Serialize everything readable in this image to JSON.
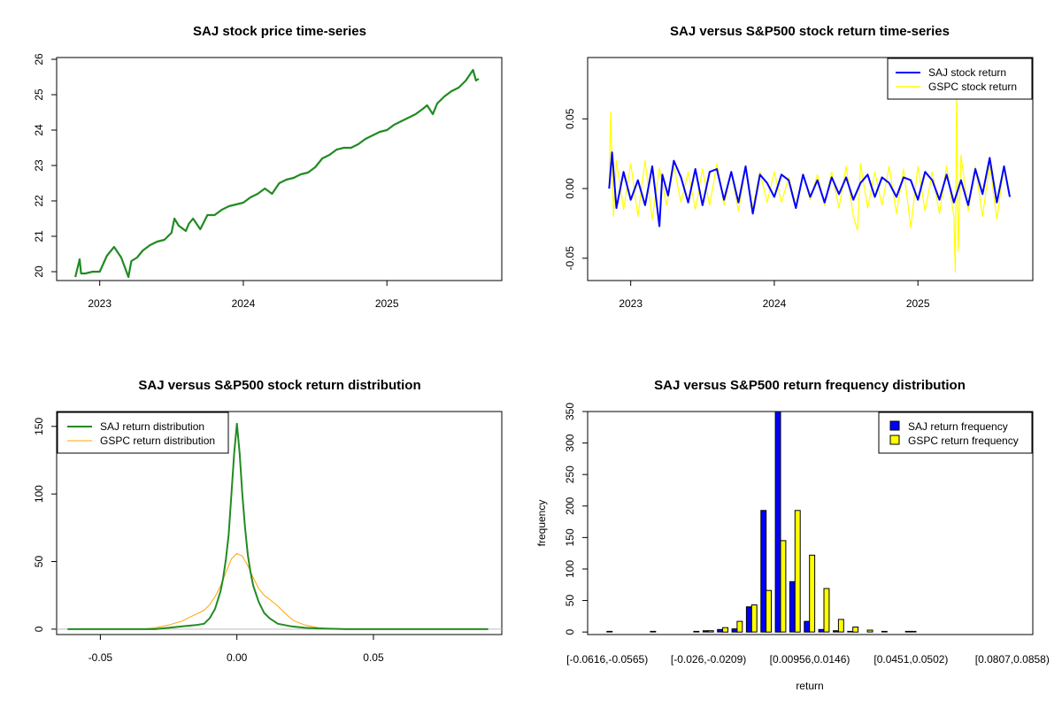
{
  "chart_data": [
    {
      "type": "line",
      "title": "SAJ stock price time-series",
      "xlabel": "",
      "ylabel": "",
      "x_ticks": [
        "2023",
        "2024",
        "2025"
      ],
      "x_tick_values": [
        2023.0,
        2024.0,
        2025.0
      ],
      "xlim": [
        2022.7,
        2025.8
      ],
      "y_ticks": [
        "20",
        "21",
        "22",
        "23",
        "24",
        "25",
        "26"
      ],
      "y_tick_values": [
        20,
        21,
        22,
        23,
        24,
        25,
        26
      ],
      "ylim": [
        19.75,
        26.05
      ],
      "grid": false,
      "legend": "none",
      "colors": {
        "line": "#228b22"
      },
      "series": [
        {
          "x": [
            2022.83,
            2022.86,
            2022.87,
            2022.9,
            2022.95,
            2023.0,
            2023.05,
            2023.1,
            2023.15,
            2023.2,
            2023.22,
            2023.26,
            2023.3,
            2023.35,
            2023.4,
            2023.45,
            2023.5,
            2023.52,
            2023.55,
            2023.6,
            2023.62,
            2023.65,
            2023.7,
            2023.75,
            2023.8,
            2023.85,
            2023.9,
            2023.95,
            2024.0,
            2024.05,
            2024.1,
            2024.15,
            2024.2,
            2024.25,
            2024.3,
            2024.35,
            2024.4,
            2024.45,
            2024.5,
            2024.55,
            2024.6,
            2024.65,
            2024.7,
            2024.75,
            2024.8,
            2024.85,
            2024.9,
            2024.95,
            2025.0,
            2025.05,
            2025.1,
            2025.15,
            2025.2,
            2025.25,
            2025.28,
            2025.32,
            2025.35,
            2025.4,
            2025.45,
            2025.5,
            2025.55,
            2025.6,
            2025.62,
            2025.64
          ],
          "y": [
            19.85,
            20.35,
            19.95,
            19.95,
            20.0,
            20.0,
            20.45,
            20.7,
            20.4,
            19.85,
            20.3,
            20.4,
            20.6,
            20.75,
            20.85,
            20.9,
            21.1,
            21.5,
            21.3,
            21.15,
            21.35,
            21.5,
            21.2,
            21.6,
            21.6,
            21.75,
            21.85,
            21.9,
            21.95,
            22.1,
            22.2,
            22.35,
            22.2,
            22.5,
            22.6,
            22.65,
            22.75,
            22.8,
            22.95,
            23.2,
            23.3,
            23.45,
            23.5,
            23.5,
            23.6,
            23.75,
            23.85,
            23.95,
            24.0,
            24.15,
            24.25,
            24.35,
            24.45,
            24.6,
            24.7,
            24.45,
            24.75,
            24.95,
            25.1,
            25.2,
            25.4,
            25.7,
            25.4,
            25.45
          ]
        }
      ]
    },
    {
      "type": "line",
      "title": "SAJ versus S&P500 stock return time-series",
      "xlabel": "",
      "ylabel": "",
      "x_ticks": [
        "2023",
        "2024",
        "2025"
      ],
      "x_tick_values": [
        2023.0,
        2024.0,
        2025.0
      ],
      "xlim": [
        2022.7,
        2025.8
      ],
      "y_ticks": [
        "-0.05",
        "0.00",
        "0.05"
      ],
      "y_tick_values": [
        -0.05,
        0.0,
        0.05
      ],
      "ylim": [
        -0.066,
        0.094
      ],
      "grid": false,
      "legend": "top-right",
      "colors": {
        "saj": "#0000ff",
        "gspc": "#ffff00"
      },
      "series": [
        {
          "name": "SAJ stock return",
          "x": [
            2022.85,
            2022.87,
            2022.9,
            2022.95,
            2023.0,
            2023.05,
            2023.1,
            2023.15,
            2023.2,
            2023.22,
            2023.26,
            2023.3,
            2023.35,
            2023.4,
            2023.45,
            2023.5,
            2023.55,
            2023.6,
            2023.65,
            2023.7,
            2023.75,
            2023.8,
            2023.85,
            2023.9,
            2023.95,
            2024.0,
            2024.05,
            2024.1,
            2024.15,
            2024.2,
            2024.25,
            2024.3,
            2024.35,
            2024.4,
            2024.45,
            2024.5,
            2024.55,
            2024.6,
            2024.65,
            2024.7,
            2024.75,
            2024.8,
            2024.85,
            2024.9,
            2024.95,
            2025.0,
            2025.05,
            2025.1,
            2025.15,
            2025.2,
            2025.25,
            2025.3,
            2025.35,
            2025.4,
            2025.45,
            2025.5,
            2025.55,
            2025.6,
            2025.64
          ],
          "y": [
            0.0,
            0.026,
            -0.014,
            0.012,
            -0.008,
            0.006,
            -0.012,
            0.016,
            -0.027,
            0.01,
            -0.005,
            0.02,
            0.008,
            -0.01,
            0.014,
            -0.012,
            0.012,
            0.014,
            -0.008,
            0.012,
            -0.01,
            0.016,
            -0.018,
            0.01,
            0.004,
            -0.006,
            0.01,
            0.006,
            -0.014,
            0.01,
            -0.006,
            0.006,
            -0.01,
            0.008,
            -0.004,
            0.008,
            -0.008,
            0.004,
            0.01,
            -0.006,
            0.008,
            0.004,
            -0.006,
            0.008,
            0.006,
            -0.008,
            0.012,
            0.006,
            -0.008,
            0.01,
            -0.01,
            0.006,
            -0.012,
            0.014,
            -0.004,
            0.022,
            -0.01,
            0.016,
            -0.006
          ]
        },
        {
          "name": "GSPC stock return",
          "x": [
            2022.85,
            2022.86,
            2022.88,
            2022.9,
            2022.95,
            2023.0,
            2023.05,
            2023.1,
            2023.15,
            2023.2,
            2023.25,
            2023.3,
            2023.35,
            2023.4,
            2023.45,
            2023.5,
            2023.55,
            2023.6,
            2023.65,
            2023.7,
            2023.75,
            2023.8,
            2023.85,
            2023.9,
            2023.95,
            2024.0,
            2024.05,
            2024.1,
            2024.15,
            2024.2,
            2024.25,
            2024.3,
            2024.35,
            2024.4,
            2024.45,
            2024.5,
            2024.55,
            2024.58,
            2024.6,
            2024.65,
            2024.7,
            2024.75,
            2024.8,
            2024.85,
            2024.9,
            2024.95,
            2025.0,
            2025.05,
            2025.1,
            2025.15,
            2025.2,
            2025.25,
            2025.26,
            2025.27,
            2025.28,
            2025.3,
            2025.35,
            2025.4,
            2025.45,
            2025.5,
            2025.55,
            2025.6,
            2025.64
          ],
          "y": [
            0.0,
            0.055,
            -0.02,
            0.02,
            -0.015,
            0.018,
            -0.02,
            0.02,
            -0.022,
            0.015,
            -0.012,
            0.016,
            -0.01,
            0.012,
            -0.015,
            0.014,
            -0.012,
            0.018,
            -0.012,
            0.012,
            -0.016,
            0.015,
            -0.014,
            0.012,
            -0.01,
            0.012,
            -0.01,
            0.008,
            -0.012,
            0.01,
            -0.008,
            0.01,
            -0.012,
            0.012,
            -0.014,
            0.016,
            -0.02,
            -0.03,
            0.018,
            -0.014,
            0.012,
            -0.012,
            0.016,
            -0.018,
            0.014,
            -0.028,
            0.016,
            -0.016,
            0.012,
            -0.018,
            0.016,
            -0.02,
            -0.06,
            0.07,
            -0.045,
            0.024,
            -0.016,
            0.016,
            -0.02,
            0.018,
            -0.022,
            0.016,
            -0.004
          ]
        }
      ]
    },
    {
      "type": "line",
      "title": "SAJ versus S&P500 stock return distribution",
      "xlabel": "",
      "ylabel": "",
      "x_ticks": [
        "-0.05",
        "0.00",
        "0.05"
      ],
      "x_tick_values": [
        -0.05,
        0.0,
        0.05
      ],
      "xlim": [
        -0.066,
        0.097
      ],
      "y_ticks": [
        "0",
        "50",
        "100",
        "150"
      ],
      "y_tick_values": [
        0,
        50,
        100,
        150
      ],
      "ylim": [
        -4,
        161
      ],
      "grid": false,
      "legend": "top-left",
      "colors": {
        "saj": "#228b22",
        "gspc": "#ffa500",
        "baseline": "#bebebe"
      },
      "series": [
        {
          "name": "SAJ return distribution",
          "x": [
            -0.062,
            -0.04,
            -0.03,
            -0.025,
            -0.02,
            -0.015,
            -0.012,
            -0.01,
            -0.008,
            -0.006,
            -0.005,
            -0.004,
            -0.003,
            -0.002,
            -0.001,
            0.0,
            0.001,
            0.002,
            0.003,
            0.004,
            0.005,
            0.006,
            0.008,
            0.01,
            0.012,
            0.015,
            0.02,
            0.025,
            0.03,
            0.04,
            0.055,
            0.092
          ],
          "y": [
            0,
            0,
            0,
            1,
            2,
            3,
            4,
            8,
            15,
            28,
            38,
            52,
            70,
            100,
            130,
            152,
            130,
            100,
            75,
            55,
            42,
            32,
            20,
            12,
            8,
            4,
            2,
            1,
            0.5,
            0,
            0,
            0
          ]
        },
        {
          "name": "GSPC return distribution",
          "x": [
            -0.062,
            -0.04,
            -0.035,
            -0.03,
            -0.025,
            -0.02,
            -0.017,
            -0.014,
            -0.012,
            -0.01,
            -0.008,
            -0.006,
            -0.004,
            -0.002,
            0.0,
            0.002,
            0.004,
            0.006,
            0.008,
            0.01,
            0.012,
            0.015,
            0.018,
            0.021,
            0.025,
            0.03,
            0.035,
            0.04,
            0.06,
            0.092
          ],
          "y": [
            0,
            0,
            0,
            1,
            3,
            6,
            9,
            12,
            14,
            18,
            24,
            32,
            42,
            52,
            56,
            54,
            47,
            38,
            30,
            25,
            22,
            17,
            11,
            6,
            3,
            1,
            0.3,
            0,
            0,
            0
          ]
        }
      ]
    },
    {
      "type": "bar",
      "title": "SAJ versus S&P500 return frequency distribution",
      "xlabel": "return",
      "ylabel": "frequency",
      "x_tick_labels": [
        "[-0.0616,-0.0565)",
        "[-0.026,-0.0209)",
        "[0.00956,0.0146)",
        "[0.0451,0.0502)",
        "[0.0807,0.0858)"
      ],
      "x_tick_bins": [
        0,
        7,
        14,
        21,
        28
      ],
      "y_ticks": [
        "0",
        "50",
        "100",
        "150",
        "200",
        "250",
        "300",
        "350"
      ],
      "y_tick_values": [
        0,
        50,
        100,
        150,
        200,
        250,
        300,
        350
      ],
      "ylim": [
        -4,
        350
      ],
      "grid": false,
      "legend": "top-right",
      "colors": {
        "saj": "#0000ff",
        "gspc": "#ffff00"
      },
      "series": [
        {
          "name": "SAJ return frequency",
          "values": [
            0,
            0,
            0,
            0,
            0,
            0,
            0,
            2,
            4,
            5,
            40,
            193,
            350,
            80,
            17,
            4,
            2,
            1,
            0,
            0,
            0,
            1,
            0,
            0,
            0,
            0,
            0,
            0,
            0
          ]
        },
        {
          "name": "GSPC return frequency",
          "values": [
            1,
            0,
            0,
            1,
            0,
            0,
            1,
            2,
            7,
            17,
            43,
            66,
            145,
            193,
            122,
            69,
            20,
            8,
            3,
            1,
            0,
            1,
            0,
            0,
            0,
            0,
            0,
            0,
            0
          ]
        }
      ]
    }
  ]
}
